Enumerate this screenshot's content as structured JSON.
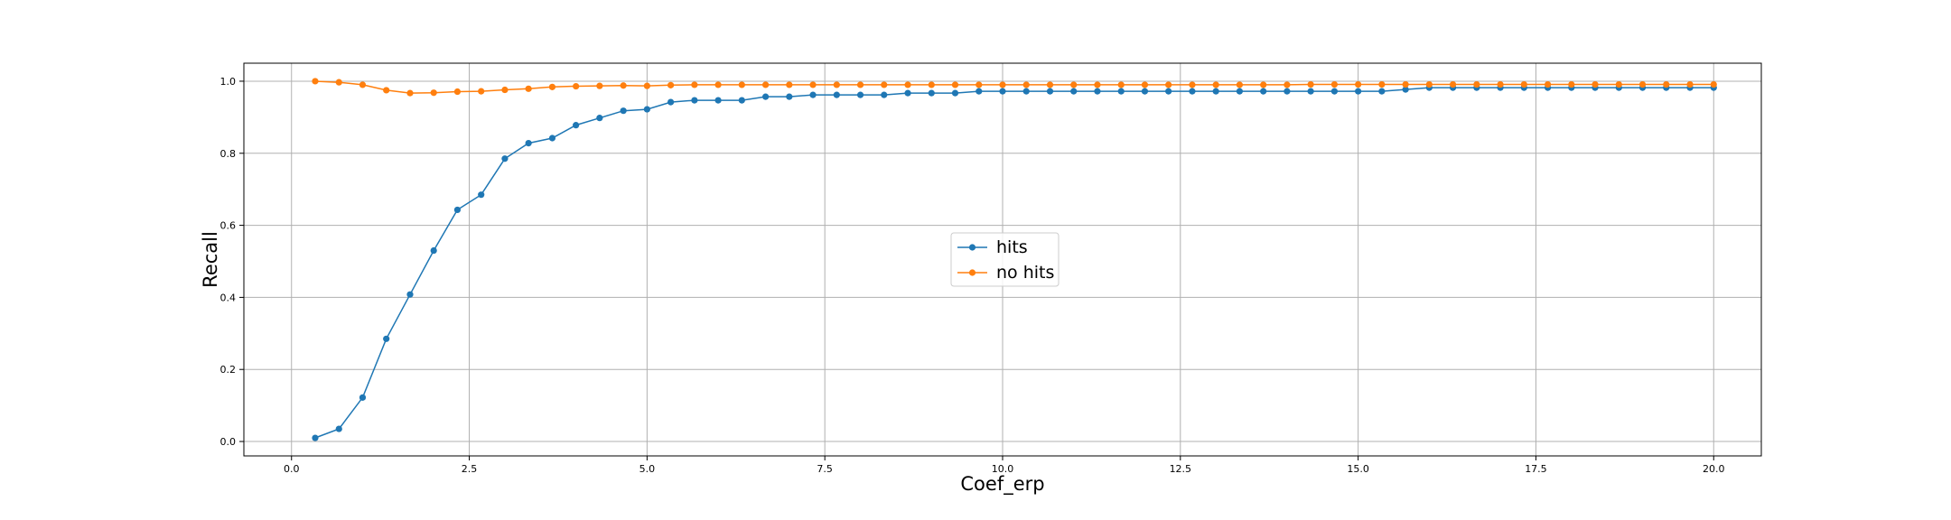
{
  "chart_data": {
    "type": "line",
    "xlabel": "Coef_erp",
    "ylabel": "Recall",
    "xlim": [
      -0.67,
      20.67
    ],
    "ylim": [
      -0.04,
      1.05
    ],
    "x_ticks": [
      0.0,
      2.5,
      5.0,
      7.5,
      10.0,
      12.5,
      15.0,
      17.5,
      20.0
    ],
    "x_tick_labels": [
      "0.0",
      "2.5",
      "5.0",
      "7.5",
      "10.0",
      "12.5",
      "15.0",
      "17.5",
      "20.0"
    ],
    "y_ticks": [
      0.0,
      0.2,
      0.4,
      0.6,
      0.8,
      1.0
    ],
    "y_tick_labels": [
      "0.0",
      "0.2",
      "0.4",
      "0.6",
      "0.8",
      "1.0"
    ],
    "grid": true,
    "legend_position": "center",
    "x": [
      0.333,
      0.667,
      1.0,
      1.333,
      1.667,
      2.0,
      2.333,
      2.667,
      3.0,
      3.333,
      3.667,
      4.0,
      4.333,
      4.667,
      5.0,
      5.333,
      5.667,
      6.0,
      6.333,
      6.667,
      7.0,
      7.333,
      7.667,
      8.0,
      8.333,
      8.667,
      9.0,
      9.333,
      9.667,
      10.0,
      10.333,
      10.667,
      11.0,
      11.333,
      11.667,
      12.0,
      12.333,
      12.667,
      13.0,
      13.333,
      13.667,
      14.0,
      14.333,
      14.667,
      15.0,
      15.333,
      15.667,
      16.0,
      16.333,
      16.667,
      17.0,
      17.333,
      17.667,
      18.0,
      18.333,
      18.667,
      19.0,
      19.333,
      19.667,
      20.0
    ],
    "series": [
      {
        "name": "hits",
        "color": "#1f77b4",
        "values": [
          0.01,
          0.035,
          0.122,
          0.285,
          0.408,
          0.53,
          0.643,
          0.685,
          0.785,
          0.828,
          0.842,
          0.878,
          0.898,
          0.918,
          0.922,
          0.942,
          0.947,
          0.947,
          0.947,
          0.957,
          0.957,
          0.962,
          0.962,
          0.962,
          0.962,
          0.967,
          0.967,
          0.967,
          0.972,
          0.972,
          0.972,
          0.972,
          0.972,
          0.972,
          0.972,
          0.972,
          0.972,
          0.972,
          0.972,
          0.972,
          0.972,
          0.972,
          0.972,
          0.972,
          0.972,
          0.972,
          0.977,
          0.982,
          0.982,
          0.982,
          0.982,
          0.982,
          0.982,
          0.982,
          0.982,
          0.982,
          0.982,
          0.982,
          0.982,
          0.982
        ]
      },
      {
        "name": "no hits",
        "color": "#ff7f0e",
        "values": [
          1.0,
          0.997,
          0.99,
          0.975,
          0.967,
          0.968,
          0.971,
          0.972,
          0.976,
          0.979,
          0.984,
          0.986,
          0.987,
          0.988,
          0.987,
          0.989,
          0.99,
          0.99,
          0.99,
          0.99,
          0.99,
          0.99,
          0.99,
          0.99,
          0.99,
          0.99,
          0.99,
          0.99,
          0.99,
          0.99,
          0.99,
          0.99,
          0.99,
          0.99,
          0.99,
          0.99,
          0.99,
          0.99,
          0.99,
          0.99,
          0.99,
          0.99,
          0.991,
          0.991,
          0.991,
          0.991,
          0.991,
          0.991,
          0.991,
          0.991,
          0.991,
          0.991,
          0.991,
          0.991,
          0.991,
          0.991,
          0.991,
          0.991,
          0.991,
          0.991
        ]
      }
    ]
  }
}
